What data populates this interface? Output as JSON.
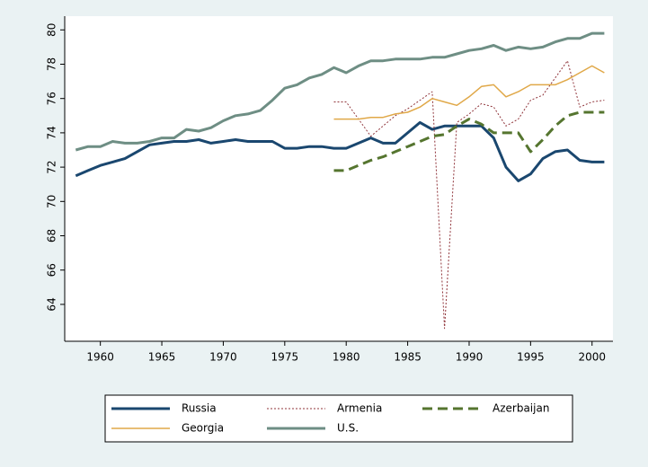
{
  "chart_data": {
    "type": "line",
    "x": [
      1958,
      1959,
      1960,
      1961,
      1962,
      1963,
      1964,
      1965,
      1966,
      1967,
      1968,
      1969,
      1970,
      1971,
      1972,
      1973,
      1974,
      1975,
      1976,
      1977,
      1978,
      1979,
      1980,
      1981,
      1982,
      1983,
      1984,
      1985,
      1986,
      1987,
      1988,
      1989,
      1990,
      1991,
      1992,
      1993,
      1994,
      1995,
      1996,
      1997,
      1998,
      1999,
      2000,
      2001
    ],
    "series": [
      {
        "name": "Russia",
        "color": "#1a476f",
        "values": [
          71.5,
          71.8,
          72.1,
          72.3,
          72.5,
          72.9,
          73.3,
          73.4,
          73.5,
          73.5,
          73.6,
          73.4,
          73.5,
          73.6,
          73.5,
          73.5,
          73.5,
          73.1,
          73.1,
          73.2,
          73.2,
          73.1,
          73.1,
          73.4,
          73.7,
          73.4,
          73.4,
          74.0,
          74.6,
          74.2,
          74.4,
          74.4,
          74.4,
          74.4,
          73.7,
          72.0,
          71.2,
          71.6,
          72.5,
          72.9,
          73.0,
          72.4,
          72.3,
          72.3
        ]
      },
      {
        "name": "Armenia",
        "color": "#90353b",
        "values": [
          null,
          null,
          null,
          null,
          null,
          null,
          null,
          null,
          null,
          null,
          null,
          null,
          null,
          null,
          null,
          null,
          null,
          null,
          null,
          null,
          null,
          75.8,
          75.8,
          74.8,
          73.8,
          74.4,
          75.0,
          75.4,
          75.9,
          76.4,
          62.6,
          74.6,
          75.1,
          75.7,
          75.5,
          74.4,
          74.8,
          75.9,
          76.2,
          77.2,
          78.2,
          75.5,
          75.8,
          75.9
        ]
      },
      {
        "name": "Azerbaijan",
        "color": "#55752f",
        "values": [
          null,
          null,
          null,
          null,
          null,
          null,
          null,
          null,
          null,
          null,
          null,
          null,
          null,
          null,
          null,
          null,
          null,
          null,
          null,
          null,
          null,
          71.8,
          71.8,
          72.1,
          72.4,
          72.6,
          72.9,
          73.2,
          73.5,
          73.8,
          73.9,
          74.4,
          74.8,
          74.5,
          74.0,
          74.0,
          74.0,
          72.9,
          73.6,
          74.4,
          75.0,
          75.2,
          75.2,
          75.2
        ]
      },
      {
        "name": "Georgia",
        "color": "#e0a848",
        "values": [
          null,
          null,
          null,
          null,
          null,
          null,
          null,
          null,
          null,
          null,
          null,
          null,
          null,
          null,
          null,
          null,
          null,
          null,
          null,
          null,
          null,
          74.8,
          74.8,
          74.8,
          74.9,
          74.9,
          75.1,
          75.2,
          75.5,
          76.0,
          75.8,
          75.6,
          76.1,
          76.7,
          76.8,
          76.1,
          76.4,
          76.8,
          76.8,
          76.8,
          77.1,
          77.5,
          77.9,
          77.5
        ]
      },
      {
        "name": "U.S.",
        "color": "#6e8e84",
        "values": [
          73.0,
          73.2,
          73.2,
          73.5,
          73.4,
          73.4,
          73.5,
          73.7,
          73.7,
          74.2,
          74.1,
          74.3,
          74.7,
          75.0,
          75.1,
          75.3,
          75.9,
          76.6,
          76.8,
          77.2,
          77.4,
          77.8,
          77.5,
          77.9,
          78.2,
          78.2,
          78.3,
          78.3,
          78.3,
          78.4,
          78.4,
          78.6,
          78.8,
          78.9,
          79.1,
          78.8,
          79.0,
          78.9,
          79.0,
          79.3,
          79.5,
          79.5,
          79.8,
          79.8
        ]
      }
    ],
    "xlim": [
      1957.1,
      2001.7
    ],
    "xticks": [
      1960,
      1965,
      1970,
      1975,
      1980,
      1985,
      1990,
      1995,
      2000
    ],
    "ylim": [
      61.85,
      80.8
    ],
    "yticks": [
      64,
      66,
      68,
      70,
      72,
      74,
      76,
      78,
      80
    ],
    "legend": "bottom"
  }
}
